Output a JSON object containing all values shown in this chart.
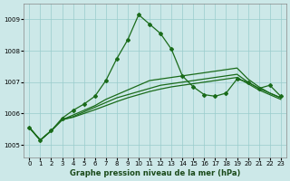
{
  "xlabel": "Graphe pression niveau de la mer (hPa)",
  "background_color": "#cce8e8",
  "grid_color": "#99cccc",
  "line_color": "#1a6b1a",
  "xlim": [
    -0.5,
    23.5
  ],
  "ylim": [
    1004.6,
    1009.5
  ],
  "yticks": [
    1005,
    1006,
    1007,
    1008,
    1009
  ],
  "xticks": [
    0,
    1,
    2,
    3,
    4,
    5,
    6,
    7,
    8,
    9,
    10,
    11,
    12,
    13,
    14,
    15,
    16,
    17,
    18,
    19,
    20,
    21,
    22,
    23
  ],
  "series": [
    {
      "y": [
        1005.55,
        1005.15,
        1005.45,
        1005.85,
        1006.1,
        1006.3,
        1006.55,
        1007.05,
        1007.75,
        1008.35,
        1009.15,
        1008.85,
        1008.55,
        1008.05,
        1007.2,
        1006.85,
        1006.6,
        1006.55,
        1006.65,
        1007.1,
        1007.0,
        1006.8,
        1006.9,
        1006.55
      ],
      "marker": true
    },
    {
      "y": [
        1005.55,
        1005.15,
        1005.45,
        1005.8,
        1005.95,
        1006.1,
        1006.25,
        1006.45,
        1006.6,
        1006.75,
        1006.9,
        1007.05,
        1007.1,
        1007.15,
        1007.2,
        1007.25,
        1007.3,
        1007.35,
        1007.4,
        1007.45,
        1007.1,
        1006.85,
        1006.65,
        1006.5
      ],
      "marker": false
    },
    {
      "y": [
        1005.55,
        1005.15,
        1005.45,
        1005.8,
        1005.9,
        1006.05,
        1006.2,
        1006.35,
        1006.5,
        1006.6,
        1006.7,
        1006.8,
        1006.9,
        1006.95,
        1007.0,
        1007.05,
        1007.1,
        1007.15,
        1007.2,
        1007.25,
        1007.0,
        1006.8,
        1006.65,
        1006.5
      ],
      "marker": false
    },
    {
      "y": [
        1005.55,
        1005.15,
        1005.45,
        1005.8,
        1005.88,
        1006.0,
        1006.12,
        1006.25,
        1006.38,
        1006.5,
        1006.6,
        1006.7,
        1006.78,
        1006.85,
        1006.9,
        1006.95,
        1007.0,
        1007.05,
        1007.1,
        1007.15,
        1006.95,
        1006.75,
        1006.6,
        1006.45
      ],
      "marker": false
    }
  ]
}
